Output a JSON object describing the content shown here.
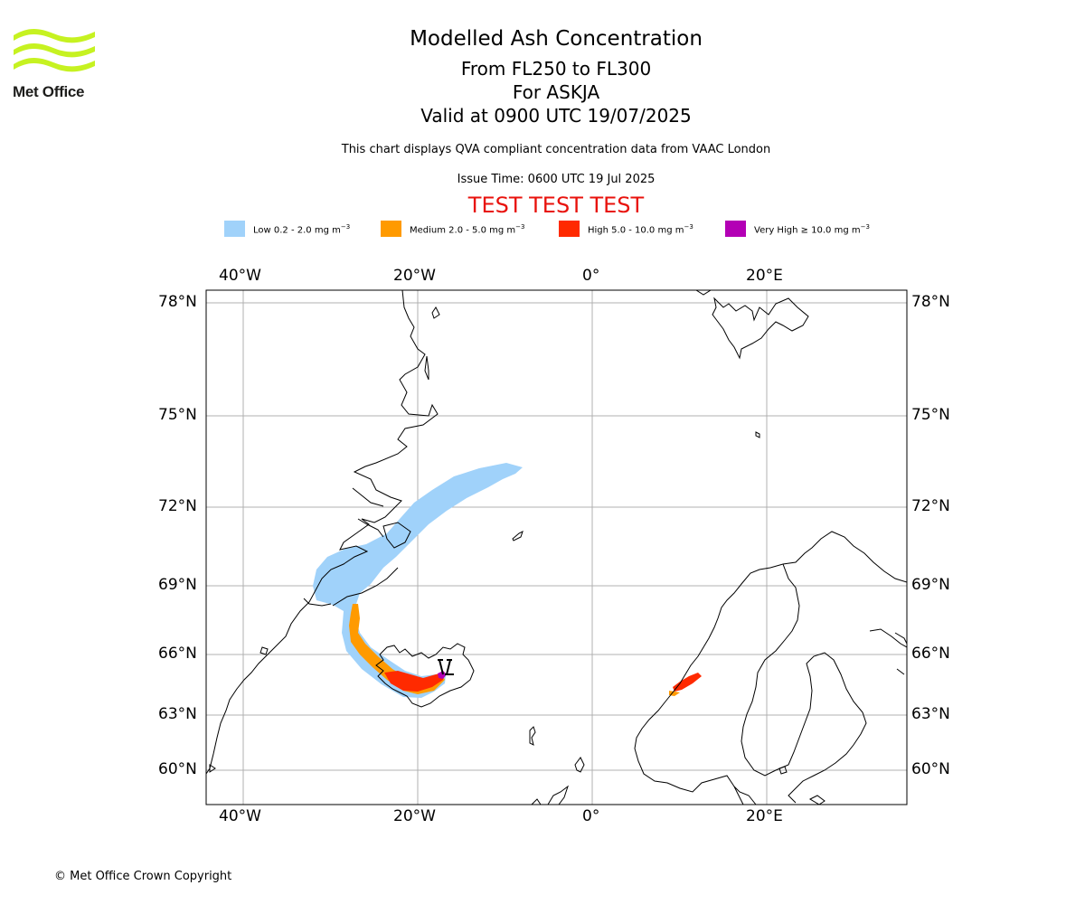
{
  "logo": {
    "text": "Met Office"
  },
  "header": {
    "title": "Modelled Ash Concentration",
    "levels": "From FL250 to FL300",
    "volcano": "For ASKJA",
    "valid": "Valid at 0900 UTC 19/07/2025",
    "note": "This chart displays QVA compliant concentration data from VAAC London",
    "issue": "Issue Time: 0600 UTC 19 Jul 2025",
    "test": "TEST TEST TEST"
  },
  "legend": [
    {
      "prefix": "Low 0.2 - 2.0 mg m",
      "exp": "−3",
      "color": "#a0d2fa"
    },
    {
      "prefix": "Medium 2.0 - 5.0 mg m",
      "exp": "−3",
      "color": "#ff9a00"
    },
    {
      "prefix": "High 5.0 - 10.0 mg m",
      "exp": "−3",
      "color": "#ff2a00"
    },
    {
      "prefix": "Very High  ≥  10.0 mg m",
      "exp": "−3",
      "color": "#b300b5"
    }
  ],
  "axes": {
    "lon_labels": [
      "40°W",
      "20°W",
      "0°",
      "20°E"
    ],
    "lat_labels": [
      "78°N",
      "75°N",
      "72°N",
      "69°N",
      "66°N",
      "63°N",
      "60°N"
    ]
  },
  "colors": {
    "coast": "#000000",
    "grid": "#b0b0b0"
  },
  "footer": {
    "copyright": "© Met Office Crown Copyright"
  }
}
